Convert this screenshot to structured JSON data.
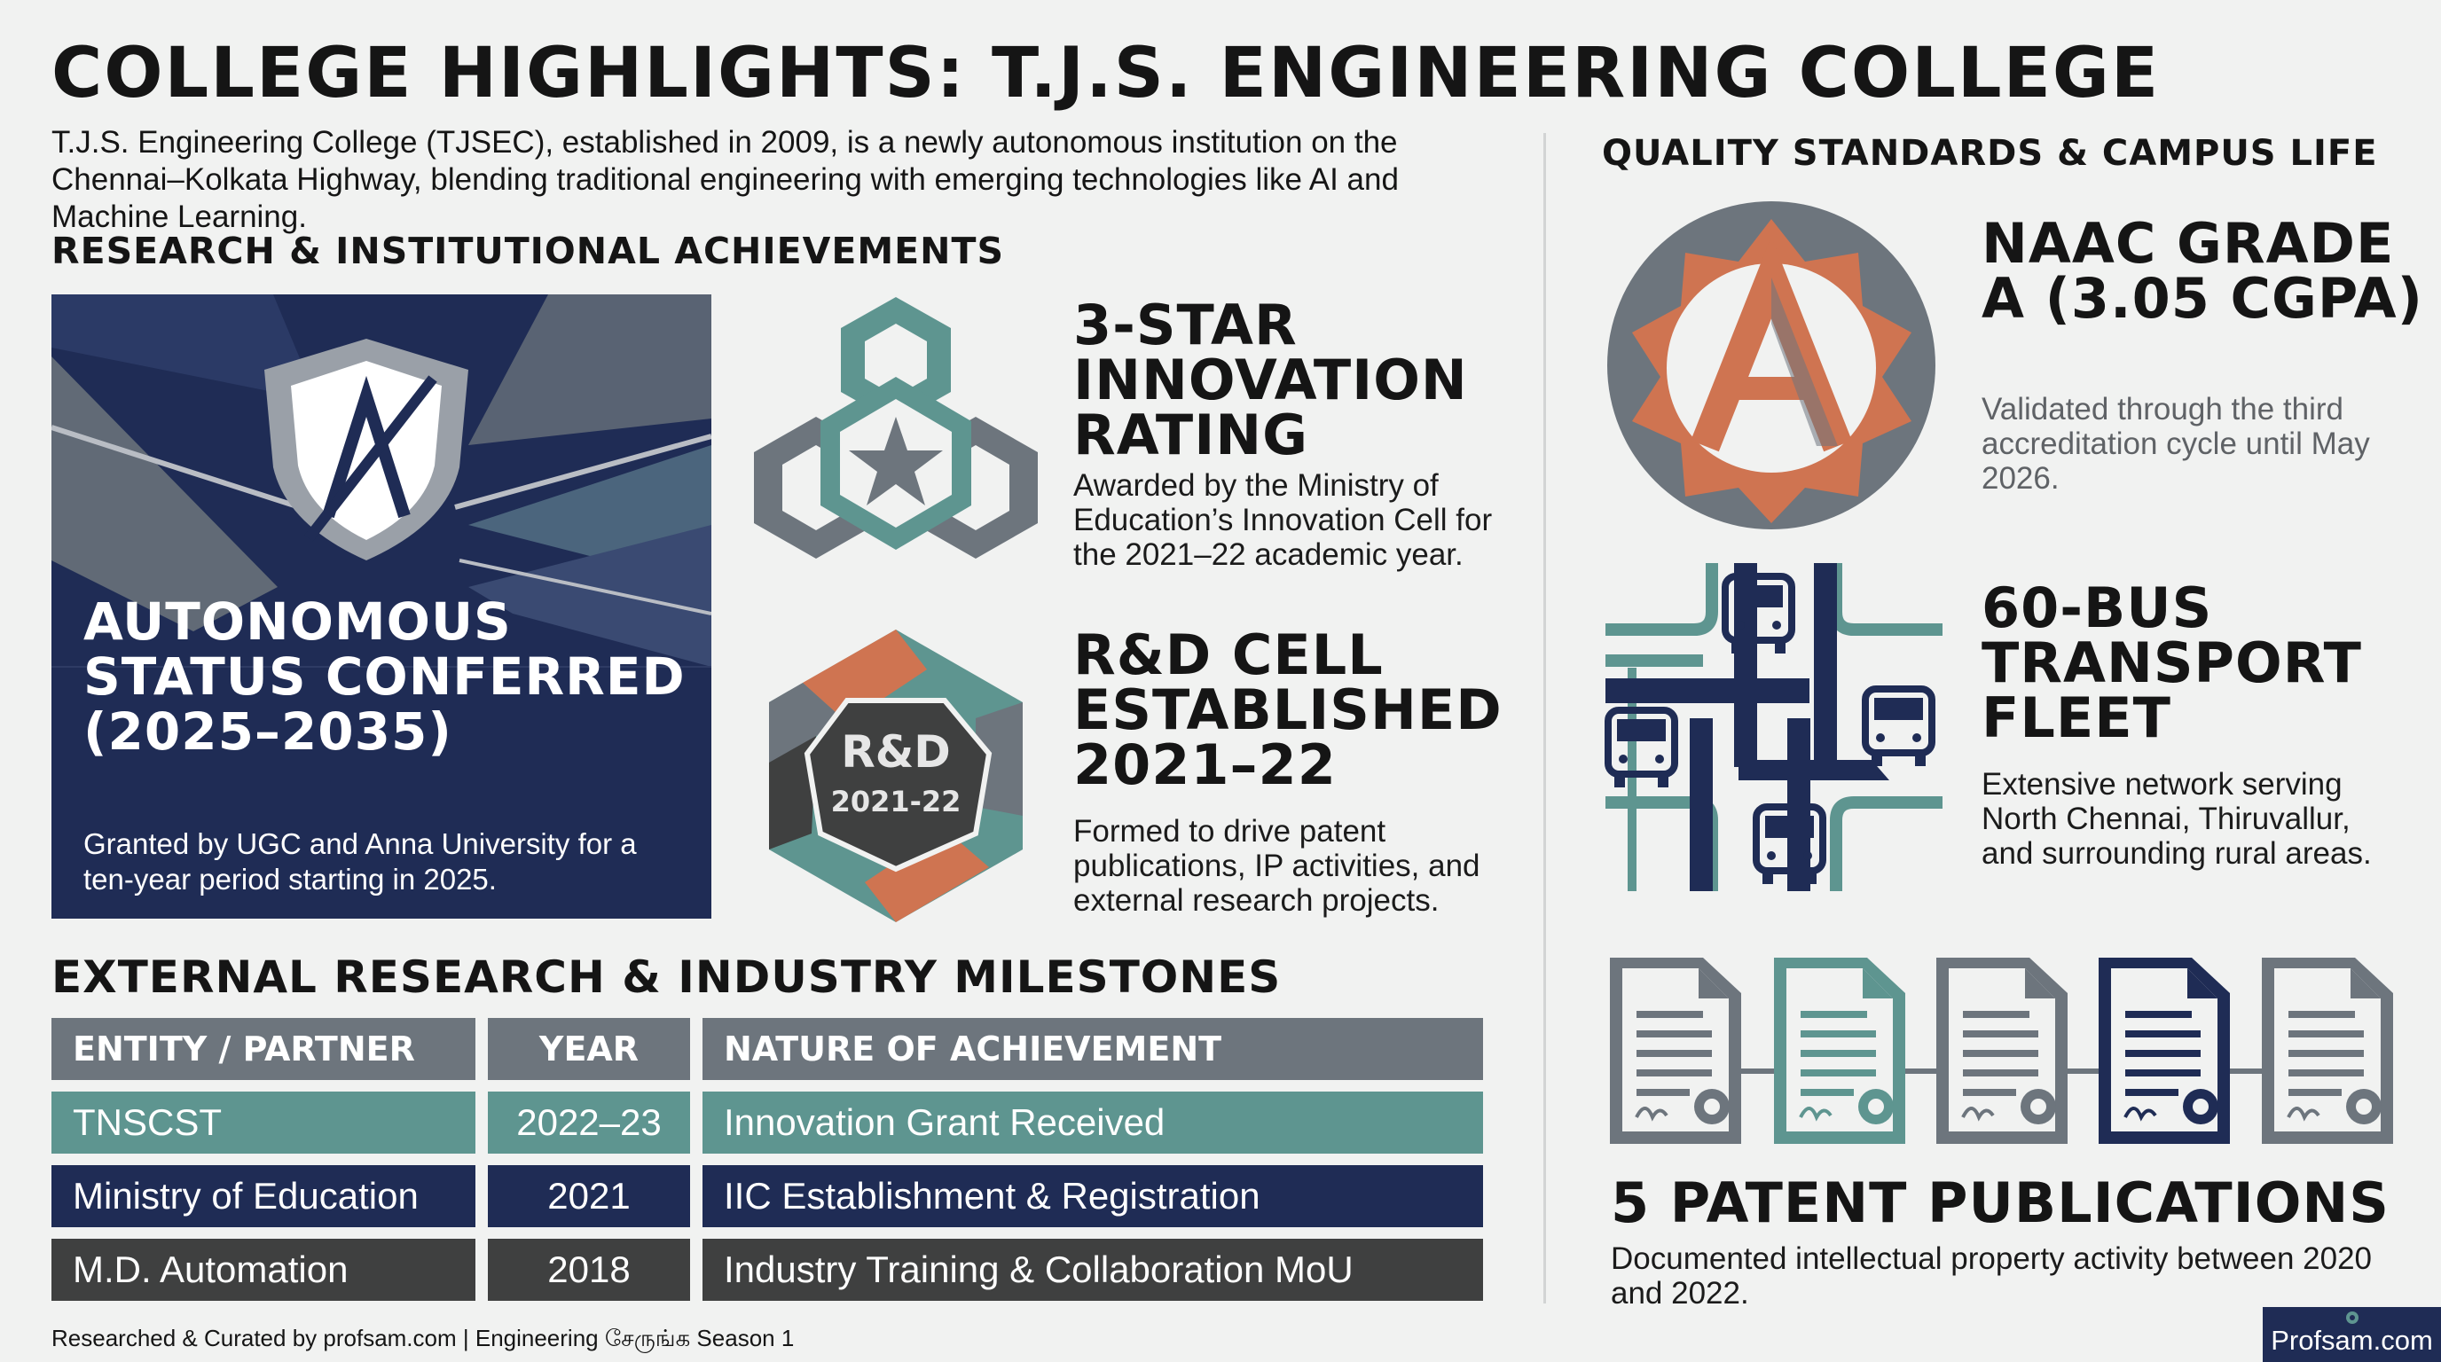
{
  "header": {
    "title": "COLLEGE HIGHLIGHTS: T.J.S. ENGINEERING COLLEGE",
    "intro": "T.J.S. Engineering College (TJSEC), established in 2009, is a newly autonomous institution on the Chennai–Kolkata Highway, blending traditional engineering with emerging technologies like AI and Machine Learning."
  },
  "sections": {
    "research": "RESEARCH & INSTITUTIONAL ACHIEVEMENTS",
    "quality": "QUALITY STANDARDS & CAMPUS LIFE",
    "milestones": "EXTERNAL RESEARCH & INDUSTRY MILESTONES"
  },
  "autonomous": {
    "title": "AUTONOMOUS STATUS CONFERRED (2025–2035)",
    "description": "Granted by UGC and Anna University for a ten-year period starting in 2025.",
    "shield_letter": "A"
  },
  "innovation": {
    "title": "3-STAR INNOVATION RATING",
    "description": "Awarded by the Ministry of Education’s Innovation Cell for the 2021–22 academic year."
  },
  "rnd": {
    "title": "R&D CELL ESTABLISHED 2021–22",
    "description": "Formed to drive patent publications, IP activities, and external research projects.",
    "badge_label": "R&D",
    "badge_year": "2021-22"
  },
  "naac": {
    "title": "NAAC GRADE A (3.05 CGPA)",
    "description": "Validated through the third accreditation cycle until May 2026.",
    "badge_letter": "A"
  },
  "transport": {
    "title": "60-BUS TRANSPORT FLEET",
    "description": "Extensive network serving North Chennai, Thiruvallur, and surrounding rural areas."
  },
  "patents": {
    "title": "5 PATENT PUBLICATIONS",
    "description": "Documented intellectual property activity between 2020 and 2022."
  },
  "table": {
    "headers": [
      "ENTITY / PARTNER",
      "YEAR",
      "NATURE OF ACHIEVEMENT"
    ],
    "rows": [
      [
        "TNSCST",
        "2022–23",
        "Innovation Grant Received"
      ],
      [
        "Ministry of Education",
        "2021",
        "IIC Establishment & Registration"
      ],
      [
        "M.D. Automation",
        "2018",
        "Industry Training & Collaboration MoU"
      ]
    ]
  },
  "footer": {
    "credit": "Researched & Curated by profsam.com | Engineering சேருங்க Season 1",
    "brand": "Profsam.com"
  },
  "colors": {
    "navy": "#1f2c55",
    "teal": "#5e9590",
    "orange": "#cf7451",
    "gray": "#6d757d",
    "charcoal": "#3f4040"
  }
}
